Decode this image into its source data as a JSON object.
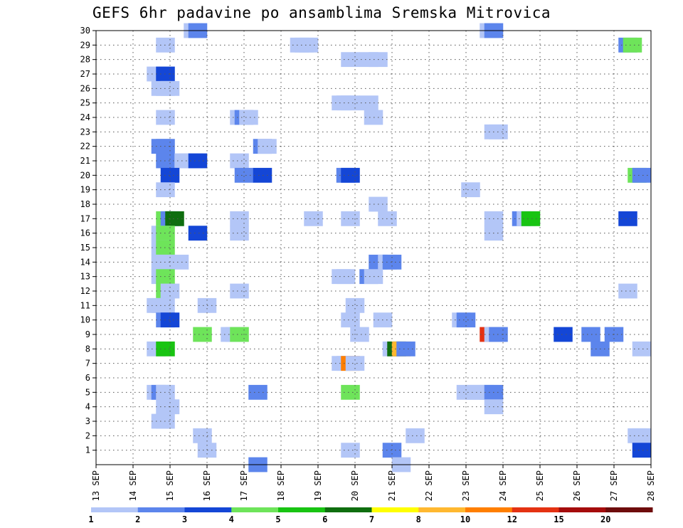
{
  "chart_data": {
    "type": "heatmap",
    "title": "GEFS 6hr padavine po ansamblima Sremska Mitrovica",
    "x_ticks": [
      "13 SEP",
      "14 SEP",
      "15 SEP",
      "16 SEP",
      "17 SEP",
      "18 SEP",
      "19 SEP",
      "20 SEP",
      "21 SEP",
      "22 SEP",
      "23 SEP",
      "24 SEP",
      "25 SEP",
      "26 SEP",
      "27 SEP",
      "28 SEP"
    ],
    "y_ticks": [
      "1",
      "2",
      "3",
      "4",
      "5",
      "6",
      "7",
      "8",
      "9",
      "10",
      "11",
      "12",
      "13",
      "14",
      "15",
      "16",
      "17",
      "18",
      "19",
      "20",
      "21",
      "22",
      "23",
      "24",
      "25",
      "26",
      "27",
      "28",
      "29",
      "30"
    ],
    "x_step_hours": 6,
    "y_range": [
      1,
      30
    ],
    "grid": true,
    "colorbar": {
      "labels": [
        "1",
        "2",
        "3",
        "4",
        "5",
        "6",
        "7",
        "8",
        "10",
        "12",
        "15",
        "20"
      ],
      "colors": [
        "#b3c6f7",
        "#5c85ec",
        "#1446d6",
        "#6ee45a",
        "#18c412",
        "#0f6e0f",
        "#ffff00",
        "#ffb830",
        "#ff7f00",
        "#e43212",
        "#a50c0c",
        "#6e0c0c"
      ]
    },
    "cells": [
      [
        30,
        10.5,
        1
      ],
      [
        30,
        11,
        2
      ],
      [
        30,
        42.5,
        1
      ],
      [
        30,
        43,
        2
      ],
      [
        29,
        7.5,
        1
      ],
      [
        29,
        22,
        1
      ],
      [
        29,
        22.5,
        1
      ],
      [
        29,
        23,
        1
      ],
      [
        29,
        57.5,
        2
      ],
      [
        29,
        58,
        4
      ],
      [
        28,
        27.5,
        1
      ],
      [
        28,
        29.5,
        1
      ],
      [
        28,
        30.5,
        1
      ],
      [
        27,
        6.5,
        1
      ],
      [
        27,
        7.5,
        3
      ],
      [
        26,
        7,
        1
      ],
      [
        26,
        7.5,
        1
      ],
      [
        26,
        8,
        1
      ],
      [
        25,
        26.5,
        1
      ],
      [
        25,
        27,
        1
      ],
      [
        25,
        27.5,
        1
      ],
      [
        25,
        29.5,
        1
      ],
      [
        24,
        7.5,
        1
      ],
      [
        24,
        15.5,
        1
      ],
      [
        24,
        16,
        2
      ],
      [
        24,
        16.5,
        1
      ],
      [
        24,
        30,
        1
      ],
      [
        23,
        43,
        1
      ],
      [
        23,
        43.5,
        1
      ],
      [
        22,
        7,
        2
      ],
      [
        22,
        7.5,
        2
      ],
      [
        22,
        18,
        2
      ],
      [
        22,
        18.5,
        1
      ],
      [
        21,
        7.5,
        2
      ],
      [
        21,
        9.5,
        1
      ],
      [
        21,
        10,
        1
      ],
      [
        21,
        10.5,
        1
      ],
      [
        21,
        11,
        3
      ],
      [
        21,
        15.5,
        1
      ],
      [
        20,
        8,
        3
      ],
      [
        20,
        16,
        2
      ],
      [
        20,
        18,
        3
      ],
      [
        20,
        27,
        2
      ],
      [
        20,
        27.5,
        3
      ],
      [
        20,
        58.5,
        4
      ],
      [
        20,
        59,
        2
      ],
      [
        19,
        7.5,
        1
      ],
      [
        19,
        40.5,
        1
      ],
      [
        18,
        30.5,
        1
      ],
      [
        17,
        7.5,
        4
      ],
      [
        17,
        8,
        2
      ],
      [
        17,
        8.5,
        6
      ],
      [
        17,
        15.5,
        1
      ],
      [
        17,
        23.5,
        1
      ],
      [
        17,
        27.5,
        1
      ],
      [
        17,
        31.5,
        1
      ],
      [
        17,
        43,
        1
      ],
      [
        17,
        46,
        2
      ],
      [
        17,
        46.5,
        1
      ],
      [
        17,
        47,
        5
      ],
      [
        17,
        57.5,
        3
      ],
      [
        16,
        7,
        1
      ],
      [
        16,
        7.5,
        4
      ],
      [
        16,
        11,
        3
      ],
      [
        16,
        15.5,
        1
      ],
      [
        16,
        43,
        1
      ],
      [
        15,
        7,
        1
      ],
      [
        15,
        7.5,
        4
      ],
      [
        14,
        7,
        1
      ],
      [
        14,
        7.5,
        1
      ],
      [
        14,
        9,
        1
      ],
      [
        14,
        30.5,
        2
      ],
      [
        14,
        31.5,
        1
      ],
      [
        14,
        32,
        2
      ],
      [
        13,
        7,
        1
      ],
      [
        13,
        7.5,
        4
      ],
      [
        13,
        26.5,
        1
      ],
      [
        13,
        27,
        1
      ],
      [
        13,
        29.5,
        2
      ],
      [
        13,
        30,
        1
      ],
      [
        12,
        7.5,
        4
      ],
      [
        12,
        8,
        1
      ],
      [
        12,
        15.5,
        1
      ],
      [
        12,
        57.5,
        1
      ],
      [
        11,
        6.5,
        1
      ],
      [
        11,
        7,
        1
      ],
      [
        11,
        7.5,
        1
      ],
      [
        11,
        12,
        1
      ],
      [
        11,
        28,
        1
      ],
      [
        10,
        7.5,
        2
      ],
      [
        10,
        8,
        3
      ],
      [
        10,
        27.5,
        1
      ],
      [
        10,
        31,
        1
      ],
      [
        10,
        39.5,
        1
      ],
      [
        10,
        40,
        2
      ],
      [
        9,
        11.5,
        4
      ],
      [
        9,
        14.5,
        1
      ],
      [
        9,
        15,
        1
      ],
      [
        9,
        15.5,
        4
      ],
      [
        9,
        28.5,
        1
      ],
      [
        9,
        42.5,
        10
      ],
      [
        9,
        43,
        1
      ],
      [
        9,
        43.5,
        2
      ],
      [
        9,
        50.5,
        3
      ],
      [
        9,
        53.5,
        2
      ],
      [
        9,
        56,
        2
      ],
      [
        8,
        6.5,
        1
      ],
      [
        8,
        7.5,
        5
      ],
      [
        8,
        32,
        1
      ],
      [
        8,
        32.5,
        6
      ],
      [
        8,
        33,
        8
      ],
      [
        8,
        33.5,
        2
      ],
      [
        8,
        54.5,
        2
      ],
      [
        8,
        59,
        1
      ],
      [
        7,
        26.5,
        1
      ],
      [
        7,
        27,
        1
      ],
      [
        7,
        27.5,
        9
      ],
      [
        7,
        28,
        1
      ],
      [
        5,
        6.5,
        1
      ],
      [
        5,
        7,
        2
      ],
      [
        5,
        7.5,
        1
      ],
      [
        5,
        17.5,
        2
      ],
      [
        5,
        27.5,
        4
      ],
      [
        5,
        40,
        1
      ],
      [
        5,
        41,
        1
      ],
      [
        5,
        42,
        1
      ],
      [
        5,
        42.5,
        1
      ],
      [
        5,
        43,
        2
      ],
      [
        4,
        7.5,
        1
      ],
      [
        4,
        8,
        1
      ],
      [
        4,
        43,
        1
      ],
      [
        3,
        7,
        1
      ],
      [
        3,
        7.5,
        1
      ],
      [
        2,
        11.5,
        1
      ],
      [
        2,
        34.5,
        1
      ],
      [
        2,
        58.5,
        1
      ],
      [
        2,
        59,
        1
      ],
      [
        1,
        12,
        1
      ],
      [
        1,
        27.5,
        1
      ],
      [
        1,
        32,
        2
      ],
      [
        1,
        59,
        3
      ],
      [
        0,
        17.5,
        2
      ],
      [
        0,
        33,
        1
      ]
    ]
  }
}
